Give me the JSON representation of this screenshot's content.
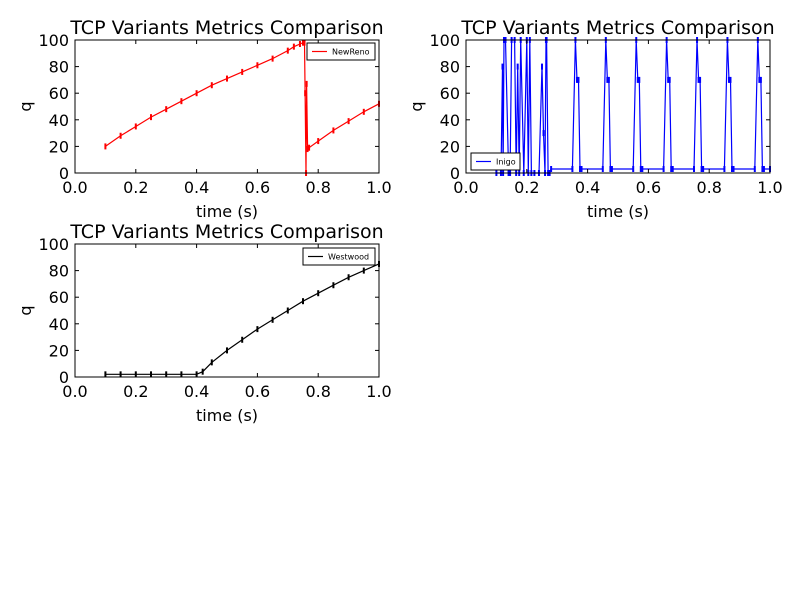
{
  "chart_data": [
    {
      "type": "line",
      "title": "TCP Variants Metrics Comparison",
      "xlabel": "time (s)",
      "ylabel": "q",
      "xlim": [
        0.0,
        1.0
      ],
      "ylim": [
        0,
        100
      ],
      "xticks": [
        "0.0",
        "0.2",
        "0.4",
        "0.6",
        "0.8",
        "1.0"
      ],
      "yticks": [
        "0",
        "20",
        "40",
        "60",
        "80",
        "100"
      ],
      "legend_position": "top-right",
      "series": [
        {
          "name": "NewReno",
          "color": "#ff0000",
          "x": [
            0.1,
            0.15,
            0.2,
            0.25,
            0.3,
            0.35,
            0.4,
            0.45,
            0.5,
            0.55,
            0.6,
            0.65,
            0.7,
            0.72,
            0.74,
            0.75,
            0.755,
            0.757,
            0.76,
            0.762,
            0.765,
            0.77,
            0.8,
            0.85,
            0.9,
            0.95,
            1.0
          ],
          "y": [
            20,
            28,
            35,
            42,
            48,
            54,
            60,
            66,
            71,
            76,
            81,
            86,
            92,
            95,
            97,
            98,
            98,
            60,
            0,
            67,
            18,
            19,
            24,
            32,
            39,
            46,
            52
          ]
        }
      ]
    },
    {
      "type": "line",
      "title": "TCP Variants Metrics Comparison",
      "xlabel": "time (s)",
      "ylabel": "q",
      "xlim": [
        0.0,
        1.0
      ],
      "ylim": [
        0,
        100
      ],
      "xticks": [
        "0.0",
        "0.2",
        "0.4",
        "0.6",
        "0.8",
        "1.0"
      ],
      "yticks": [
        "0",
        "20",
        "40",
        "60",
        "80",
        "100"
      ],
      "legend_position": "bottom-left",
      "series": [
        {
          "name": "Inigo",
          "color": "#0000ff",
          "x": [
            0.1,
            0.115,
            0.12,
            0.122,
            0.125,
            0.13,
            0.14,
            0.145,
            0.15,
            0.16,
            0.165,
            0.17,
            0.175,
            0.18,
            0.19,
            0.2,
            0.205,
            0.21,
            0.215,
            0.225,
            0.24,
            0.25,
            0.255,
            0.26,
            0.263,
            0.265,
            0.27,
            0.275,
            0.28,
            0.35,
            0.36,
            0.365,
            0.37,
            0.375,
            0.38,
            0.45,
            0.46,
            0.465,
            0.47,
            0.475,
            0.48,
            0.55,
            0.56,
            0.565,
            0.57,
            0.575,
            0.58,
            0.65,
            0.66,
            0.665,
            0.67,
            0.675,
            0.68,
            0.75,
            0.76,
            0.765,
            0.77,
            0.775,
            0.78,
            0.85,
            0.86,
            0.865,
            0.87,
            0.875,
            0.88,
            0.95,
            0.96,
            0.965,
            0.97,
            0.975,
            0.98,
            1.0
          ],
          "y": [
            0,
            0,
            80,
            0,
            100,
            100,
            0,
            0,
            100,
            100,
            0,
            80,
            0,
            100,
            0,
            100,
            0,
            100,
            0,
            0,
            0,
            80,
            30,
            0,
            100,
            100,
            0,
            0,
            3,
            3,
            100,
            70,
            70,
            3,
            3,
            3,
            100,
            70,
            70,
            3,
            3,
            3,
            100,
            70,
            70,
            3,
            3,
            3,
            100,
            70,
            70,
            3,
            3,
            3,
            100,
            70,
            70,
            3,
            3,
            3,
            100,
            70,
            70,
            3,
            3,
            3,
            100,
            70,
            70,
            3,
            3,
            3
          ]
        }
      ]
    },
    {
      "type": "line",
      "title": "TCP Variants Metrics Comparison",
      "xlabel": "time (s)",
      "ylabel": "q",
      "xlim": [
        0.0,
        1.0
      ],
      "ylim": [
        0,
        100
      ],
      "xticks": [
        "0.0",
        "0.2",
        "0.4",
        "0.6",
        "0.8",
        "1.0"
      ],
      "yticks": [
        "0",
        "20",
        "40",
        "60",
        "80",
        "100"
      ],
      "legend_position": "top-right",
      "series": [
        {
          "name": "Westwood",
          "color": "#000000",
          "x": [
            0.1,
            0.15,
            0.2,
            0.25,
            0.3,
            0.35,
            0.4,
            0.42,
            0.45,
            0.5,
            0.55,
            0.6,
            0.65,
            0.7,
            0.75,
            0.8,
            0.85,
            0.9,
            0.95,
            1.0
          ],
          "y": [
            2,
            2,
            2,
            2,
            2,
            2,
            2,
            4,
            11,
            20,
            28,
            36,
            43,
            50,
            57,
            63,
            69,
            75,
            80,
            85
          ]
        }
      ]
    }
  ]
}
